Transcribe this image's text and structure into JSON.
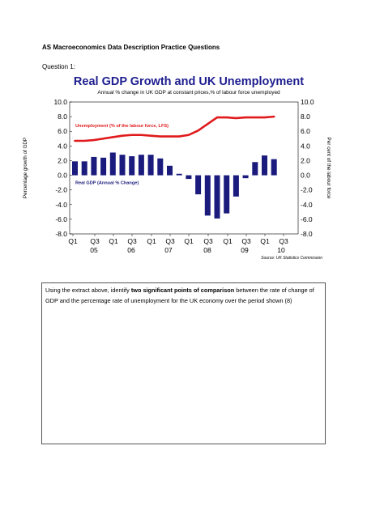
{
  "document": {
    "title": "AS Macroeconomics Data Description Practice Questions",
    "question_label": "Question 1:",
    "question_text_pre": "Using the extract above, identify ",
    "question_text_bold": "two significant points of comparison",
    "question_text_post": " between the rate of change of GDP and the percentage rate of unemployment for the UK economy over the period shown (8)"
  },
  "chart_data": {
    "type": "bar",
    "title": "Real GDP Growth and UK Unemployment",
    "subtitle": "Annual % change in UK GDP at constant prices,% of labour force unemployed",
    "ylabel_left": "Percentage growth of GDP",
    "ylabel_right": "Per cent of the labour force",
    "ylim": [
      -8,
      10
    ],
    "yticks": [
      "10.0",
      "8.0",
      "6.0",
      "4.0",
      "2.0",
      "0.0",
      "-2.0",
      "-4.0",
      "-6.0",
      "-8.0"
    ],
    "x_quarter_labels": [
      "Q1",
      "Q3",
      "Q1",
      "Q3",
      "Q1",
      "Q3",
      "Q1",
      "Q3",
      "Q1",
      "Q3",
      "Q1",
      "Q3"
    ],
    "x_year_labels": [
      "05",
      "06",
      "07",
      "08",
      "09",
      "10"
    ],
    "source": "Source: UK Statistics Commission",
    "series": [
      {
        "name": "Real GDP (Annual % Change)",
        "kind": "bar",
        "color": "#1b1b7e",
        "values": [
          1.9,
          1.9,
          2.5,
          2.4,
          3.1,
          2.8,
          2.6,
          2.8,
          2.8,
          2.3,
          1.3,
          0.2,
          -0.5,
          -2.6,
          -5.5,
          -5.9,
          -5.2,
          -2.9,
          -0.4,
          1.8,
          2.7,
          2.2
        ]
      },
      {
        "name": "Unemployment (% of the labour force, LFS)",
        "kind": "line",
        "color": "#e0191b",
        "values": [
          4.7,
          4.7,
          4.8,
          5.0,
          5.2,
          5.4,
          5.5,
          5.5,
          5.4,
          5.3,
          5.3,
          5.3,
          5.5,
          6.1,
          7.0,
          7.9,
          7.9,
          7.8,
          7.9,
          7.9,
          7.9,
          8.0
        ]
      }
    ]
  }
}
